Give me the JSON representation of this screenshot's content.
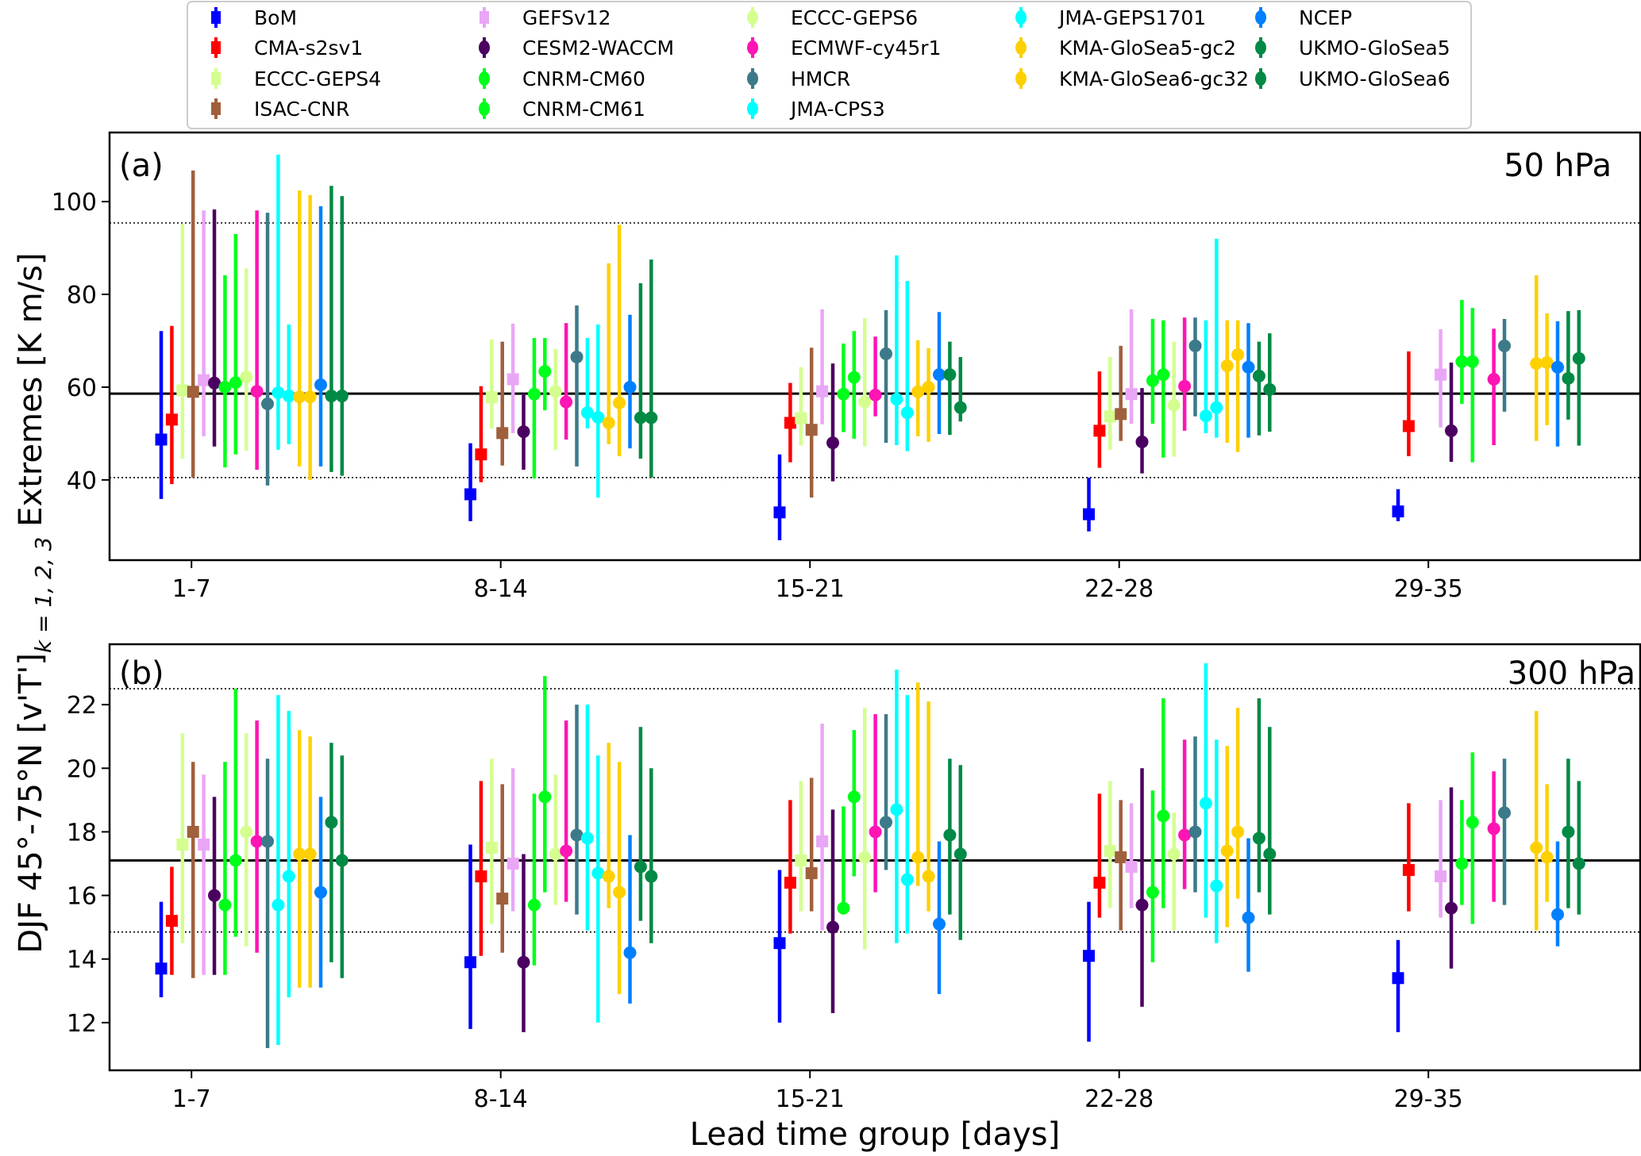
{
  "chart_data": {
    "type": "errorbar",
    "xlabel": "Lead time group [days]",
    "ylabel": "DJF  45°-75°N  [v'T']",
    "ylabel_subscript": "k = 1, 2, 3",
    "ylabel_top": "Extremes  [K m/s]",
    "categories": [
      "1-7",
      "8-14",
      "15-21",
      "22-28",
      "29-35"
    ],
    "legend": {
      "placement": "top-center",
      "columns": 5,
      "entries": [
        {
          "name": "BoM",
          "color": "#0000ff",
          "marker": "square"
        },
        {
          "name": "CMA-s2sv1",
          "color": "#ff0000",
          "marker": "square"
        },
        {
          "name": "ECCC-GEPS4",
          "color": "#d4ff8f",
          "marker": "square"
        },
        {
          "name": "ISAC-CNR",
          "color": "#a0603c",
          "marker": "square"
        },
        {
          "name": "GEFSv12",
          "color": "#eaa6f6",
          "marker": "square"
        },
        {
          "name": "CESM2-WACCM",
          "color": "#4b0061",
          "marker": "circle"
        },
        {
          "name": "CNRM-CM60",
          "color": "#00ff1a",
          "marker": "circle"
        },
        {
          "name": "CNRM-CM61",
          "color": "#00ff1a",
          "marker": "circle"
        },
        {
          "name": "ECCC-GEPS6",
          "color": "#d4ff8f",
          "marker": "circle"
        },
        {
          "name": "ECMWF-cy45r1",
          "color": "#ff14b4",
          "marker": "circle"
        },
        {
          "name": "HMCR",
          "color": "#3c7a8a",
          "marker": "circle"
        },
        {
          "name": "JMA-CPS3",
          "color": "#00ffff",
          "marker": "circle"
        },
        {
          "name": "JMA-GEPS1701",
          "color": "#00ffff",
          "marker": "circle"
        },
        {
          "name": "KMA-GloSea5-gc2",
          "color": "#ffd000",
          "marker": "circle"
        },
        {
          "name": "KMA-GloSea6-gc32",
          "color": "#ffd000",
          "marker": "circle"
        },
        {
          "name": "NCEP",
          "color": "#0080ff",
          "marker": "circle"
        },
        {
          "name": "UKMO-GloSea5",
          "color": "#008a45",
          "marker": "circle"
        },
        {
          "name": "UKMO-GloSea6",
          "color": "#008a45",
          "marker": "circle"
        }
      ]
    },
    "panels": [
      {
        "tag": "(a)",
        "level": "50 hPa",
        "ylim": [
          22.7,
          114.9
        ],
        "yticks": [
          40,
          60,
          80,
          100
        ],
        "reference_line": 58.6,
        "reference_band": [
          40.5,
          95.4
        ],
        "series": [
          {
            "name": "BoM",
            "mean": [
              48.7,
              36.9,
              33.0,
              32.6,
              33.2
            ],
            "low": [
              35.9,
              31.1,
              27.0,
              28.9,
              31.1
            ],
            "high": [
              72.1,
              47.9,
              45.5,
              40.5,
              38.0
            ]
          },
          {
            "name": "CMA-s2sv1",
            "mean": [
              53.0,
              45.5,
              52.3,
              50.6,
              51.6
            ],
            "low": [
              39.1,
              39.5,
              43.8,
              42.6,
              45.1
            ],
            "high": [
              73.2,
              60.2,
              60.9,
              63.4,
              67.7
            ]
          },
          {
            "name": "ECCC-GEPS4",
            "mean": [
              59.3,
              57.8,
              53.3,
              53.7,
              null
            ],
            "low": [
              44.6,
              51.1,
              47.4,
              46.5,
              null
            ],
            "high": [
              95.2,
              70.3,
              64.3,
              66.5,
              null
            ]
          },
          {
            "name": "ISAC-CNR",
            "mean": [
              59.0,
              50.1,
              50.8,
              54.2,
              null
            ],
            "low": [
              40.5,
              43.1,
              36.2,
              48.4,
              null
            ],
            "high": [
              106.7,
              69.8,
              68.5,
              68.9,
              null
            ]
          },
          {
            "name": "GEFSv12",
            "mean": [
              61.5,
              61.7,
              59.1,
              58.5,
              62.7
            ],
            "low": [
              49.4,
              50.1,
              52.0,
              52.1,
              51.3
            ],
            "high": [
              98.1,
              73.7,
              76.8,
              76.8,
              72.5
            ]
          },
          {
            "name": "CESM2-WACCM",
            "mean": [
              60.9,
              50.4,
              48.0,
              48.2,
              50.6
            ],
            "low": [
              47.2,
              42.2,
              39.7,
              41.4,
              43.9
            ],
            "high": [
              98.3,
              58.6,
              65.1,
              59.8,
              65.3
            ]
          },
          {
            "name": "CNRM-CM60",
            "mean": [
              60.0,
              58.5,
              58.5,
              61.4,
              65.5
            ],
            "low": [
              42.7,
              40.3,
              50.3,
              52.1,
              56.4
            ],
            "high": [
              84.1,
              70.6,
              69.4,
              74.7,
              78.8
            ]
          },
          {
            "name": "CNRM-CM61",
            "mean": [
              61.0,
              63.4,
              62.1,
              62.7,
              65.5
            ],
            "low": [
              45.5,
              55.0,
              48.9,
              44.8,
              43.8
            ],
            "high": [
              93.0,
              70.6,
              72.1,
              74.4,
              77.1
            ]
          },
          {
            "name": "ECCC-GEPS6",
            "mean": [
              62.2,
              59.1,
              56.8,
              56.1,
              null
            ],
            "low": [
              46.3,
              46.5,
              47.2,
              45.0,
              null
            ],
            "high": [
              85.6,
              68.2,
              74.9,
              69.8,
              null
            ]
          },
          {
            "name": "ECMWF-cy45r1",
            "mean": [
              59.1,
              56.8,
              58.3,
              60.2,
              61.7
            ],
            "low": [
              42.2,
              48.7,
              53.7,
              50.6,
              47.5
            ],
            "high": [
              98.1,
              73.8,
              70.9,
              75.0,
              72.6
            ]
          },
          {
            "name": "HMCR",
            "mean": [
              56.4,
              66.5,
              67.2,
              68.9,
              68.9
            ],
            "low": [
              38.8,
              42.9,
              48.0,
              53.7,
              54.7
            ],
            "high": [
              97.6,
              77.6,
              76.6,
              75.0,
              74.7
            ]
          },
          {
            "name": "JMA-CPS3",
            "mean": [
              58.8,
              54.5,
              57.4,
              53.8,
              null
            ],
            "low": [
              46.5,
              51.1,
              47.5,
              50.1,
              null
            ],
            "high": [
              110.1,
              70.6,
              88.4,
              74.4,
              null
            ]
          },
          {
            "name": "JMA-GEPS1701",
            "mean": [
              58.1,
              53.5,
              54.5,
              55.6,
              null
            ],
            "low": [
              47.7,
              36.2,
              46.2,
              49.1,
              null
            ],
            "high": [
              73.5,
              73.5,
              82.9,
              92.0,
              null
            ]
          },
          {
            "name": "KMA-GloSea5-gc2",
            "mean": [
              57.9,
              52.3,
              59.0,
              64.6,
              65.1
            ],
            "low": [
              42.9,
              47.7,
              49.4,
              48.0,
              48.4
            ],
            "high": [
              102.4,
              86.7,
              70.1,
              74.4,
              84.1
            ]
          },
          {
            "name": "KMA-GloSea6-gc32",
            "mean": [
              57.9,
              56.6,
              60.0,
              67.0,
              65.3
            ],
            "low": [
              40.0,
              45.1,
              48.2,
              46.0,
              51.8
            ],
            "high": [
              101.4,
              95.0,
              68.4,
              74.4,
              75.9
            ]
          },
          {
            "name": "NCEP",
            "mean": [
              60.5,
              60.0,
              62.7,
              64.3,
              64.3
            ],
            "low": [
              42.9,
              46.8,
              49.9,
              49.1,
              47.2
            ],
            "high": [
              99.0,
              75.6,
              76.2,
              73.8,
              74.2
            ]
          },
          {
            "name": "UKMO-GloSea5",
            "mean": [
              58.1,
              53.4,
              62.7,
              62.4,
              61.9
            ],
            "low": [
              41.7,
              44.6,
              49.7,
              49.6,
              53.0
            ],
            "high": [
              103.4,
              82.4,
              69.8,
              69.8,
              76.4
            ]
          },
          {
            "name": "UKMO-GloSea6",
            "mean": [
              58.1,
              53.4,
              55.6,
              59.5,
              66.2
            ],
            "low": [
              40.9,
              40.5,
              52.6,
              50.4,
              47.4
            ],
            "high": [
              101.2,
              87.5,
              66.5,
              71.6,
              76.6
            ]
          }
        ]
      },
      {
        "tag": "(b)",
        "level": "300 hPa",
        "ylim": [
          10.5,
          23.9
        ],
        "yticks": [
          12,
          14,
          16,
          18,
          20,
          22
        ],
        "reference_line": 17.1,
        "reference_band": [
          14.85,
          22.5
        ],
        "series": [
          {
            "name": "BoM",
            "mean": [
              13.7,
              13.9,
              14.5,
              14.1,
              13.4
            ],
            "low": [
              12.8,
              11.8,
              12.0,
              11.4,
              11.7
            ],
            "high": [
              15.8,
              17.6,
              16.8,
              15.8,
              14.6
            ]
          },
          {
            "name": "CMA-s2sv1",
            "mean": [
              15.2,
              16.6,
              16.4,
              16.4,
              16.8
            ],
            "low": [
              13.5,
              14.1,
              14.8,
              15.3,
              15.5
            ],
            "high": [
              16.9,
              19.6,
              19.0,
              19.2,
              18.9
            ]
          },
          {
            "name": "ECCC-GEPS4",
            "mean": [
              17.6,
              17.5,
              17.1,
              17.4,
              null
            ],
            "low": [
              14.5,
              15.1,
              15.5,
              15.6,
              null
            ],
            "high": [
              21.1,
              20.3,
              19.6,
              19.6,
              null
            ]
          },
          {
            "name": "ISAC-CNR",
            "mean": [
              18.0,
              15.9,
              16.7,
              17.2,
              null
            ],
            "low": [
              13.4,
              14.2,
              15.5,
              14.9,
              null
            ],
            "high": [
              20.2,
              19.5,
              19.7,
              19.0,
              null
            ]
          },
          {
            "name": "GEFSv12",
            "mean": [
              17.6,
              17.0,
              17.7,
              16.9,
              16.6
            ],
            "low": [
              13.5,
              15.5,
              14.9,
              15.6,
              15.3
            ],
            "high": [
              19.8,
              20.0,
              21.4,
              18.9,
              19.0
            ]
          },
          {
            "name": "CESM2-WACCM",
            "mean": [
              16.0,
              13.9,
              15.0,
              15.7,
              15.6
            ],
            "low": [
              13.5,
              11.7,
              12.3,
              12.5,
              13.7
            ],
            "high": [
              19.1,
              17.3,
              18.7,
              20.0,
              19.4
            ]
          },
          {
            "name": "CNRM-CM60",
            "mean": [
              15.7,
              15.7,
              15.6,
              16.1,
              17.0
            ],
            "low": [
              13.5,
              13.8,
              15.4,
              13.9,
              15.7
            ],
            "high": [
              20.2,
              19.2,
              18.8,
              19.3,
              19.0
            ]
          },
          {
            "name": "CNRM-CM61",
            "mean": [
              17.1,
              19.1,
              19.1,
              18.5,
              18.3
            ],
            "low": [
              14.7,
              16.1,
              16.6,
              15.6,
              15.1
            ],
            "high": [
              22.5,
              22.9,
              21.2,
              22.2,
              20.5
            ]
          },
          {
            "name": "ECCC-GEPS6",
            "mean": [
              18.0,
              17.3,
              17.2,
              17.3,
              null
            ],
            "low": [
              14.4,
              15.7,
              14.3,
              14.9,
              null
            ],
            "high": [
              21.1,
              19.8,
              21.9,
              18.6,
              null
            ]
          },
          {
            "name": "ECMWF-cy45r1",
            "mean": [
              17.7,
              17.4,
              18.0,
              17.9,
              18.1
            ],
            "low": [
              14.2,
              15.8,
              16.1,
              16.2,
              15.8
            ],
            "high": [
              21.5,
              21.5,
              21.7,
              20.9,
              19.9
            ]
          },
          {
            "name": "HMCR",
            "mean": [
              17.7,
              17.9,
              18.3,
              18.0,
              18.6
            ],
            "low": [
              11.2,
              15.4,
              16.8,
              16.1,
              15.7
            ],
            "high": [
              20.3,
              22.0,
              21.7,
              21.0,
              20.3
            ]
          },
          {
            "name": "JMA-CPS3",
            "mean": [
              15.7,
              17.8,
              18.7,
              18.9,
              null
            ],
            "low": [
              11.3,
              14.9,
              14.5,
              15.3,
              null
            ],
            "high": [
              22.3,
              22.0,
              23.1,
              23.3,
              null
            ]
          },
          {
            "name": "JMA-GEPS1701",
            "mean": [
              16.6,
              16.7,
              16.5,
              16.3,
              null
            ],
            "low": [
              12.8,
              12.0,
              14.8,
              14.5,
              null
            ],
            "high": [
              21.8,
              20.4,
              22.3,
              20.9,
              null
            ]
          },
          {
            "name": "KMA-GloSea5-gc2",
            "mean": [
              17.3,
              16.6,
              17.2,
              17.4,
              17.5
            ],
            "low": [
              13.1,
              15.6,
              16.3,
              15.0,
              14.9
            ],
            "high": [
              21.2,
              20.8,
              22.7,
              20.7,
              21.8
            ]
          },
          {
            "name": "KMA-GloSea6-gc32",
            "mean": [
              17.3,
              16.1,
              16.6,
              18.0,
              17.2
            ],
            "low": [
              13.1,
              12.9,
              15.5,
              15.9,
              15.8
            ],
            "high": [
              21.0,
              20.2,
              22.1,
              21.9,
              19.5
            ]
          },
          {
            "name": "NCEP",
            "mean": [
              16.1,
              14.2,
              15.1,
              15.3,
              15.4
            ],
            "low": [
              13.1,
              12.6,
              12.9,
              13.6,
              14.4
            ],
            "high": [
              19.1,
              17.9,
              17.7,
              17.8,
              17.7
            ]
          },
          {
            "name": "UKMO-GloSea5",
            "mean": [
              18.3,
              16.9,
              17.9,
              17.8,
              18.0
            ],
            "low": [
              13.9,
              15.2,
              15.4,
              16.1,
              15.6
            ],
            "high": [
              20.8,
              21.3,
              20.3,
              22.2,
              20.3
            ]
          },
          {
            "name": "UKMO-GloSea6",
            "mean": [
              17.1,
              16.6,
              17.3,
              17.3,
              17.0
            ],
            "low": [
              13.4,
              14.5,
              14.6,
              15.4,
              15.4
            ],
            "high": [
              20.4,
              20.0,
              20.1,
              21.3,
              19.6
            ]
          }
        ]
      }
    ]
  }
}
